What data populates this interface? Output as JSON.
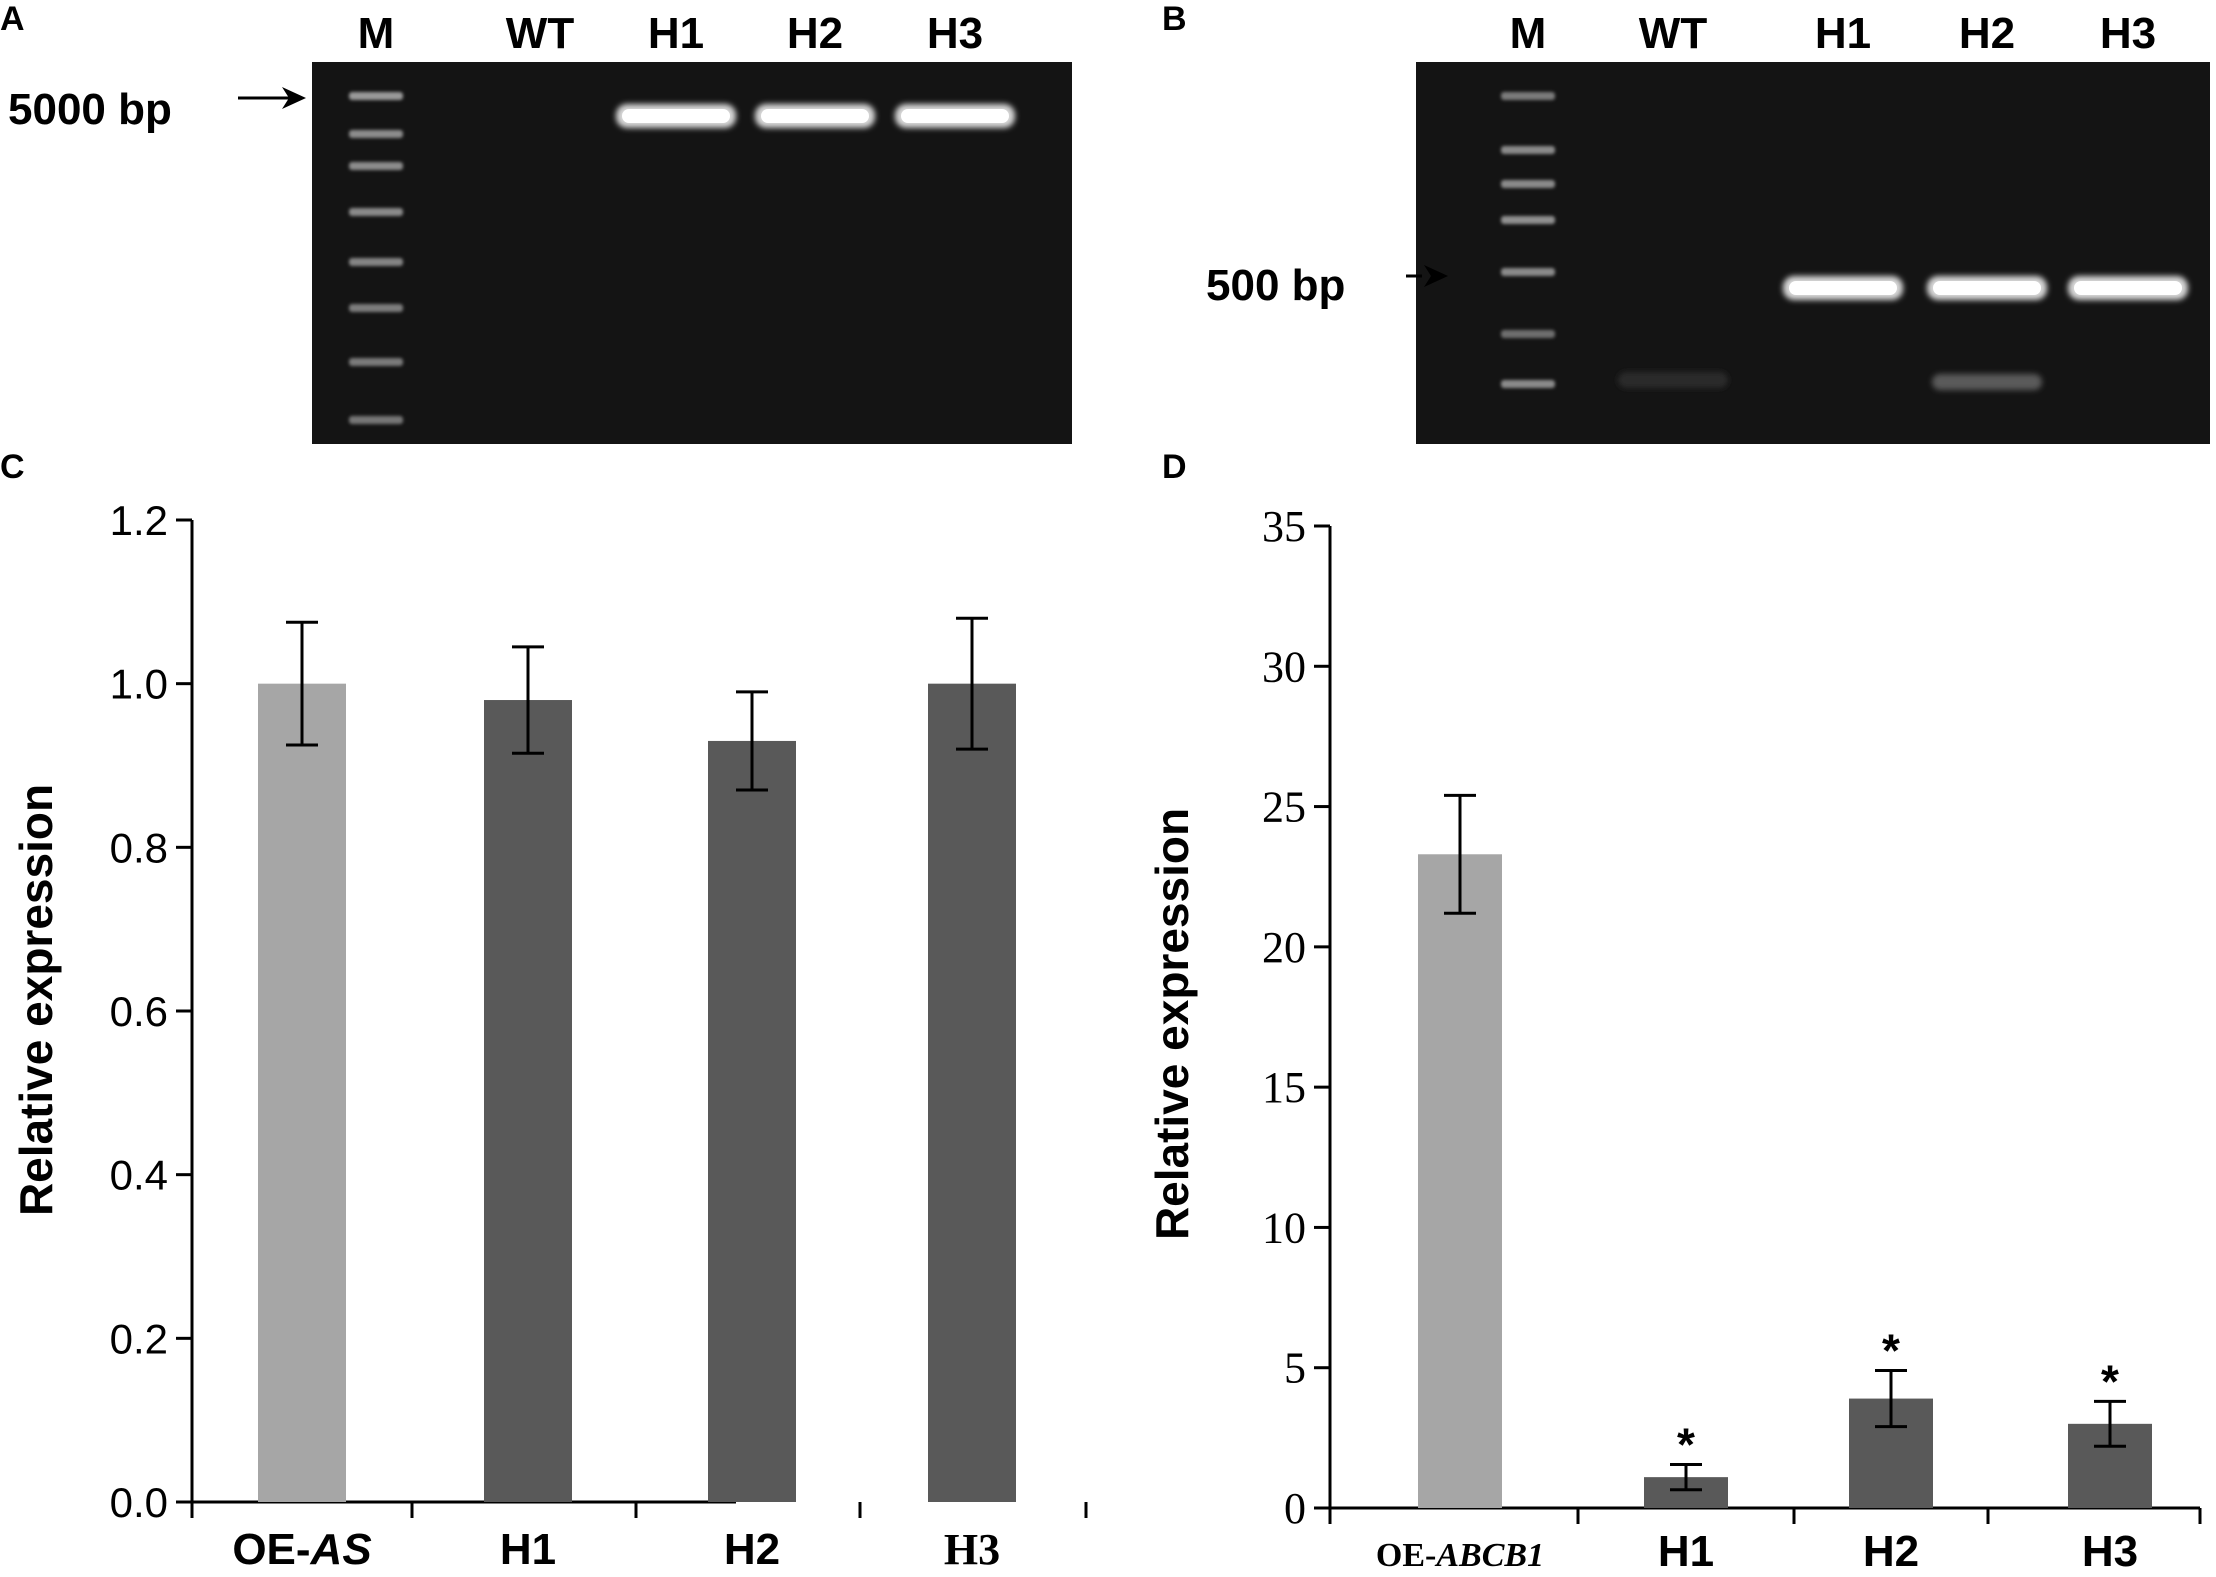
{
  "panels": {
    "A": {
      "letter": "A",
      "lanes": [
        "M",
        "WT",
        "H1",
        "H2",
        "H3"
      ],
      "marker": "5000 bp",
      "band_lanes": [
        "H1",
        "H2",
        "H3"
      ]
    },
    "B": {
      "letter": "B",
      "lanes": [
        "M",
        "WT",
        "H1",
        "H2",
        "H3"
      ],
      "marker": "500 bp",
      "band_lanes": [
        "H1",
        "H2",
        "H3"
      ]
    },
    "C": {
      "letter": "C"
    },
    "D": {
      "letter": "D"
    }
  },
  "colors": {
    "gel": "#141414",
    "control_bar": "#a6a6a6",
    "sample_bar": "#595959",
    "axis": "#000000"
  },
  "chart_data": [
    {
      "panel": "C",
      "type": "bar",
      "categories": [
        "OE-AS",
        "H1",
        "H2",
        "H3"
      ],
      "category_labels": [
        {
          "prefix": "OE-",
          "italic": "AS"
        },
        {
          "prefix": "H1",
          "italic": ""
        },
        {
          "prefix": "H2",
          "italic": ""
        },
        {
          "prefix": "H3",
          "italic": ""
        }
      ],
      "values": [
        1.0,
        0.98,
        0.93,
        1.0
      ],
      "errors": [
        0.075,
        0.065,
        0.06,
        0.08
      ],
      "significance": [
        "",
        "",
        "",
        ""
      ],
      "ylabel": "Relative expression",
      "ylim": [
        0,
        1.2
      ],
      "yticks": [
        "0.0",
        "0.2",
        "0.4",
        "0.6",
        "0.8",
        "1.0",
        "1.2"
      ],
      "legend": "none",
      "grid": false
    },
    {
      "panel": "D",
      "type": "bar",
      "categories": [
        "OE-ABCB1",
        "H1",
        "H2",
        "H3"
      ],
      "category_labels": [
        {
          "prefix": "OE-",
          "italic": "ABCB1"
        },
        {
          "prefix": "H1",
          "italic": ""
        },
        {
          "prefix": "H2",
          "italic": ""
        },
        {
          "prefix": "H3",
          "italic": ""
        }
      ],
      "values": [
        23.3,
        1.1,
        3.9,
        3.0
      ],
      "errors": [
        2.1,
        0.45,
        1.0,
        0.8
      ],
      "significance": [
        "",
        "*",
        "*",
        "*"
      ],
      "ylabel": "Relative expression",
      "ylim": [
        0,
        35
      ],
      "yticks": [
        "0",
        "5",
        "10",
        "15",
        "20",
        "25",
        "30",
        "35"
      ],
      "legend": "none",
      "grid": false
    }
  ]
}
